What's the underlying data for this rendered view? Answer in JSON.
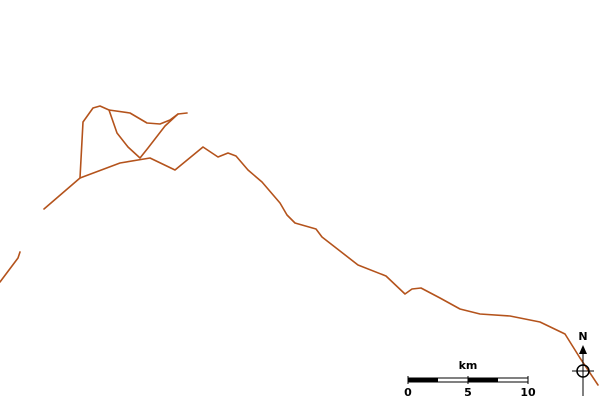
{
  "scale": {
    "unit": "km",
    "ticks": [
      0,
      5,
      10
    ],
    "max": 10
  },
  "north": "N"
}
